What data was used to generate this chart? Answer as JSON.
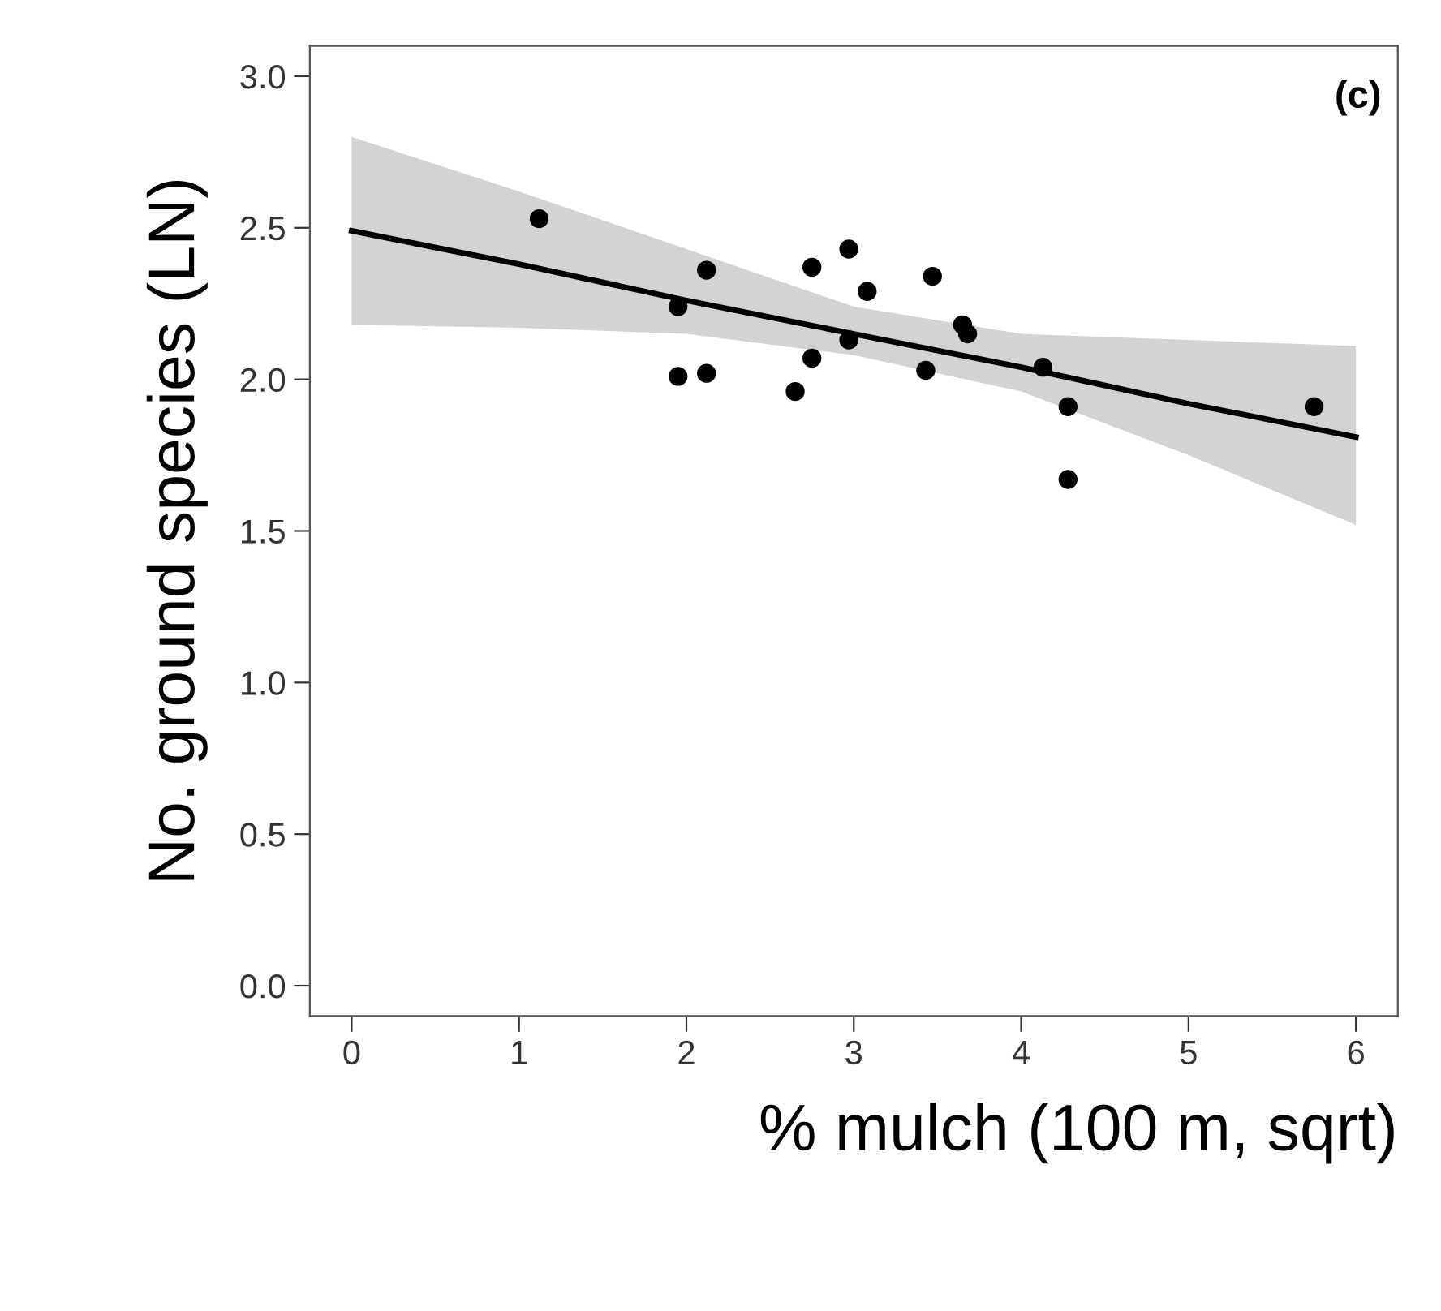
{
  "chart_data": {
    "type": "scatter",
    "xlabel": "% mulch (100 m, sqrt)",
    "ylabel": "No. ground species (LN)",
    "annotations": [
      "(c)"
    ],
    "xlim": [
      -0.25,
      6.25
    ],
    "ylim": [
      -0.1,
      3.1
    ],
    "xticks": [
      0,
      1,
      2,
      3,
      4,
      5,
      6
    ],
    "yticks": [
      {
        "value": 0,
        "label": "0.0"
      },
      {
        "value": 0.5,
        "label": "0.5"
      },
      {
        "value": 1,
        "label": "1.0"
      },
      {
        "value": 1.5,
        "label": "1.5"
      },
      {
        "value": 2,
        "label": "2.0"
      },
      {
        "value": 2.5,
        "label": "2.5"
      },
      {
        "value": 3,
        "label": "3.0"
      }
    ],
    "grid": false,
    "legend": false,
    "marker": "circle",
    "series": [
      {
        "color": "#000000",
        "x": [
          1.12,
          1.95,
          1.95,
          2.12,
          2.12,
          2.65,
          2.75,
          2.75,
          2.97,
          2.97,
          3.08,
          3.43,
          3.47,
          3.65,
          3.68,
          4.13,
          4.28,
          4.28,
          5.75
        ],
        "values": [
          2.53,
          2.24,
          2.01,
          2.36,
          2.02,
          1.96,
          2.37,
          2.07,
          2.43,
          2.13,
          2.29,
          2.03,
          2.34,
          2.18,
          2.15,
          2.04,
          1.91,
          1.67,
          1.91
        ]
      },
      {
        "type": "line",
        "color": "#000000",
        "marker": "none",
        "line_style": "solid",
        "x": [
          0,
          1,
          2,
          3,
          4,
          5,
          6
        ],
        "values": [
          2.49,
          2.38,
          2.26,
          2.15,
          2.04,
          1.92,
          1.81
        ],
        "lower": [
          2.18,
          2.17,
          2.15,
          2.08,
          1.96,
          1.75,
          1.52
        ],
        "upper": [
          2.8,
          2.62,
          2.43,
          2.24,
          2.15,
          2.13,
          2.11
        ]
      }
    ]
  }
}
